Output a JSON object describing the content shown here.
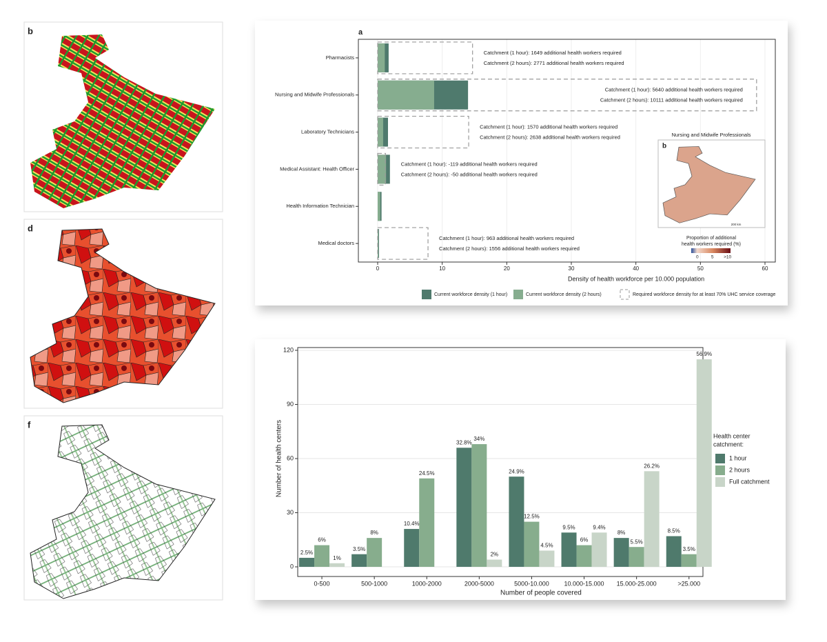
{
  "panels": [
    {
      "label": "b"
    },
    {
      "label": "d"
    },
    {
      "label": "f"
    }
  ],
  "chart_data": [
    {
      "type": "bar",
      "orientation": "horizontal",
      "panel_label": "a",
      "categories": [
        "Pharmacists",
        "Nursing and Midwife Professionals",
        "Laboratory Technicians",
        "Medical Assistant: Health Officer",
        "Health Information Technician",
        "Medical doctors"
      ],
      "series": [
        {
          "name": "Current workforce density (1 hour)",
          "color": "#4f7a6d",
          "values": [
            1.7,
            14.0,
            1.6,
            1.9,
            0.6,
            0.2
          ]
        },
        {
          "name": "Current workforce density (2 hours)",
          "color": "#86ad8f",
          "values": [
            1.1,
            8.75,
            0.85,
            1.3,
            0.4,
            0.1
          ]
        },
        {
          "name": "Required workforce density for at least 70% UHC service coverage",
          "color": "#9a9a9a",
          "style": "dashed",
          "values": [
            14.7,
            58.7,
            14.1,
            1.2,
            null,
            7.8
          ]
        }
      ],
      "annotations": [
        [
          "Catchment (1 hour): 1649 additional health workers required",
          "Catchment (2 hours): 2771 additional health workers required"
        ],
        [
          "Catchment (1 hour): 5640 additional health workers required",
          "Catchment (2 hours): 10111 additional health workers required"
        ],
        [
          "Catchment (1 hour): 1570 additional health workers required",
          "Catchment (2 hours): 2638 additional health workers required"
        ],
        [
          "Catchment (1 hour): -119 additional health workers required",
          "Catchment (2 hours): -50 additional health workers required"
        ],
        null,
        [
          "Catchment (1 hour): 963 additional health workers required",
          "Catchment (2 hours): 1556 additional health workers required"
        ]
      ],
      "xlabel": "Density of health workforce per 10.000 population",
      "xlim": [
        0,
        60
      ],
      "xticks": [
        0,
        10,
        20,
        30,
        40,
        50,
        60
      ],
      "grid": true,
      "inset": {
        "label": "b",
        "title": "Nursing and Midwife Professionals",
        "legend_title": [
          "Proportion of additional",
          "health workers required (%)"
        ],
        "clim": [
          -2,
          11
        ],
        "cticks": [
          0,
          5,
          {
            "value": 10,
            "label": ">10"
          }
        ],
        "scale_label": "200 km"
      }
    },
    {
      "type": "bar",
      "categories": [
        "0-500",
        "500-1000",
        "1000-2000",
        "2000-5000",
        "5000-10.000",
        "10.000-15.000",
        "15.000-25.000",
        ">25.000"
      ],
      "series": [
        {
          "name": "1 hour",
          "color": "#4f7a6c",
          "values": [
            5,
            7,
            21,
            66,
            50,
            19,
            16,
            17
          ],
          "annotations": [
            "2.5%",
            "3.5%",
            "10.4%",
            "32.8%",
            "24.9%",
            "9.5%",
            "8%",
            "8.5%"
          ]
        },
        {
          "name": "2 hours",
          "color": "#87ad8d",
          "values": [
            12,
            16,
            49,
            68,
            25,
            12,
            11,
            7
          ],
          "annotations": [
            "6%",
            "8%",
            "24.5%",
            "34%",
            "12.5%",
            "6%",
            "5.5%",
            "3.5%"
          ]
        },
        {
          "name": "Full catchment",
          "color": "#c8d5c8",
          "values": [
            2,
            0,
            0,
            4,
            9,
            19,
            53,
            115
          ],
          "annotations": [
            "1%",
            null,
            null,
            "2%",
            "4.5%",
            "9.4%",
            "26.2%",
            "56.9%"
          ]
        }
      ],
      "xlabel": "Number of people covered",
      "ylabel": "Number of health centers",
      "ylim": [
        0,
        120
      ],
      "yticks": [
        0,
        30,
        60,
        90,
        120
      ],
      "grid": true,
      "legend_title": [
        "Health center",
        "catchment:"
      ],
      "legend": "right"
    }
  ]
}
